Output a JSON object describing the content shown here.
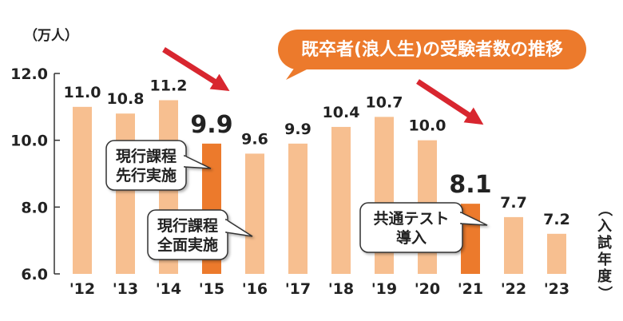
{
  "chart_data": {
    "type": "bar",
    "title": "既卒者(浪人生)の受験者数の推移",
    "ylabel": "（万人）",
    "xlabel": "（入試年度）",
    "categories": [
      "'12",
      "'13",
      "'14",
      "'15",
      "'16",
      "'17",
      "'18",
      "'19",
      "'20",
      "'21",
      "'22",
      "'23"
    ],
    "values": [
      11.0,
      10.8,
      11.2,
      9.9,
      9.6,
      9.9,
      10.4,
      10.7,
      10.0,
      8.1,
      7.7,
      7.2
    ],
    "value_labels": [
      "11.0",
      "10.8",
      "11.2",
      "9.9",
      "9.6",
      "9.9",
      "10.4",
      "10.7",
      "10.0",
      "8.1",
      "7.7",
      "7.2"
    ],
    "highlight_indices": [
      3,
      9
    ],
    "ylim": [
      6.0,
      12.0
    ],
    "yticks": [
      6.0,
      8.0,
      10.0,
      12.0
    ],
    "ytick_labels": [
      "6.0",
      "8.0",
      "10.0",
      "12.0"
    ],
    "grid": false,
    "colors": {
      "bar": "#f7bf90",
      "bar_highlight": "#ec7a2c",
      "title_bg": "#ec7a2c",
      "arrow": "#d8262f"
    },
    "annotations": [
      {
        "lines": [
          "現行課程",
          "先行実施"
        ],
        "anchor_index": 3
      },
      {
        "lines": [
          "現行課程",
          "全面実施"
        ],
        "anchor_index": 3
      },
      {
        "lines": [
          "共通テスト",
          "導入"
        ],
        "anchor_index": 9
      }
    ]
  }
}
